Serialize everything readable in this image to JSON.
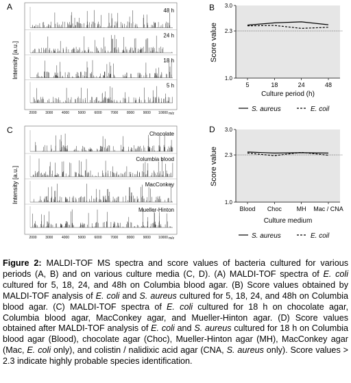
{
  "panels": {
    "A": {
      "letter": "A",
      "ylabel": "Intensity [a.u.]",
      "xlabel": "m/z",
      "xticks": [
        "2000",
        "3000",
        "4000",
        "5000",
        "6000",
        "7000",
        "8000",
        "9000",
        "10000"
      ],
      "traces": [
        "48 h",
        "24 h",
        "18 h",
        "5 h"
      ]
    },
    "B": {
      "letter": "B",
      "ylabel": "Score value",
      "xlabel": "Culture period (h)",
      "yticks": [
        "3.0",
        "2.3",
        "1.0"
      ],
      "xticks": [
        "5",
        "18",
        "24",
        "48"
      ],
      "legend": [
        {
          "label": "S. aureus",
          "style": "solid"
        },
        {
          "label": "E. coil",
          "style": "dashed"
        }
      ]
    },
    "C": {
      "letter": "C",
      "ylabel": "Intensity [a.u.]",
      "xlabel": "m/z",
      "xticks": [
        "2000",
        "3000",
        "4000",
        "5000",
        "6000",
        "7000",
        "8000",
        "9000",
        "10000"
      ],
      "traces": [
        "Chocolate",
        "Columbia blood",
        "MacConkey",
        "Mueller-Hinton"
      ]
    },
    "D": {
      "letter": "D",
      "ylabel": "Score value",
      "xlabel": "Culture medium",
      "yticks": [
        "3.0",
        "2.3",
        "1.0"
      ],
      "xticks": [
        "Blood",
        "Choc",
        "MH",
        "Mac / CNA"
      ],
      "legend": [
        {
          "label": "S. aureus",
          "style": "solid"
        },
        {
          "label": "E. coil",
          "style": "dashed"
        }
      ]
    }
  },
  "chart_data": [
    {
      "type": "line",
      "panel": "B",
      "categories": [
        "5",
        "18",
        "24",
        "48"
      ],
      "series": [
        {
          "name": "S. aureus",
          "values": [
            2.46,
            2.52,
            2.55,
            2.47
          ]
        },
        {
          "name": "E. coil",
          "values": [
            2.44,
            2.45,
            2.37,
            2.4
          ]
        }
      ],
      "xlabel": "Culture period (h)",
      "ylabel": "Score value",
      "ylim": [
        1.0,
        3.0
      ],
      "threshold": 2.3
    },
    {
      "type": "line",
      "panel": "D",
      "categories": [
        "Blood",
        "Choc",
        "MH",
        "Mac / CNA"
      ],
      "series": [
        {
          "name": "S. aureus",
          "values": [
            2.38,
            2.35,
            2.36,
            2.35
          ]
        },
        {
          "name": "E. coil",
          "values": [
            2.35,
            2.28,
            2.37,
            2.29
          ]
        }
      ],
      "xlabel": "Culture medium",
      "ylabel": "Score value",
      "ylim": [
        1.0,
        3.0
      ],
      "threshold": 2.3
    }
  ],
  "caption": {
    "label": "Figure 2:",
    "segments": [
      {
        "t": " MALDI-TOF MS spectra and score values of bacteria cultured for various periods (A, B) and on various culture media (C, D). (A) MALDI-TOF spectra of ",
        "i": false
      },
      {
        "t": "E. coli",
        "i": true
      },
      {
        "t": " cultured for 5, 18, 24, and 48h on Columbia blood agar. (B) Score values obtained by MALDI-TOF analysis of ",
        "i": false
      },
      {
        "t": "E. coli",
        "i": true
      },
      {
        "t": " and ",
        "i": false
      },
      {
        "t": "S. aureus",
        "i": true
      },
      {
        "t": " cultured for 5, 18, 24, and 48h on Columbia blood agar. (C) MALDI-TOF spectra of ",
        "i": false
      },
      {
        "t": "E. coli",
        "i": true
      },
      {
        "t": " cultured for 18 h on chocolate agar, Columbia blood agar, MacConkey agar, and Mueller-Hinton agar. (D) Score values obtained after MALDI-TOF analysis of ",
        "i": false
      },
      {
        "t": "E. coli",
        "i": true
      },
      {
        "t": " and ",
        "i": false
      },
      {
        "t": "S. aureus",
        "i": true
      },
      {
        "t": " cultured for 18 h on Columbia blood agar (Blood), chocolate agar (Choc), Mueller-Hinton agar (MH), MacConkey agar (Mac, ",
        "i": false
      },
      {
        "t": "E. coli",
        "i": true
      },
      {
        "t": " only), and colistin / nalidixic acid agar (CNA, ",
        "i": false
      },
      {
        "t": "S. aureus",
        "i": true
      },
      {
        "t": " only). Score values > 2.3 indicate highly probable species identification.",
        "i": false
      }
    ]
  }
}
